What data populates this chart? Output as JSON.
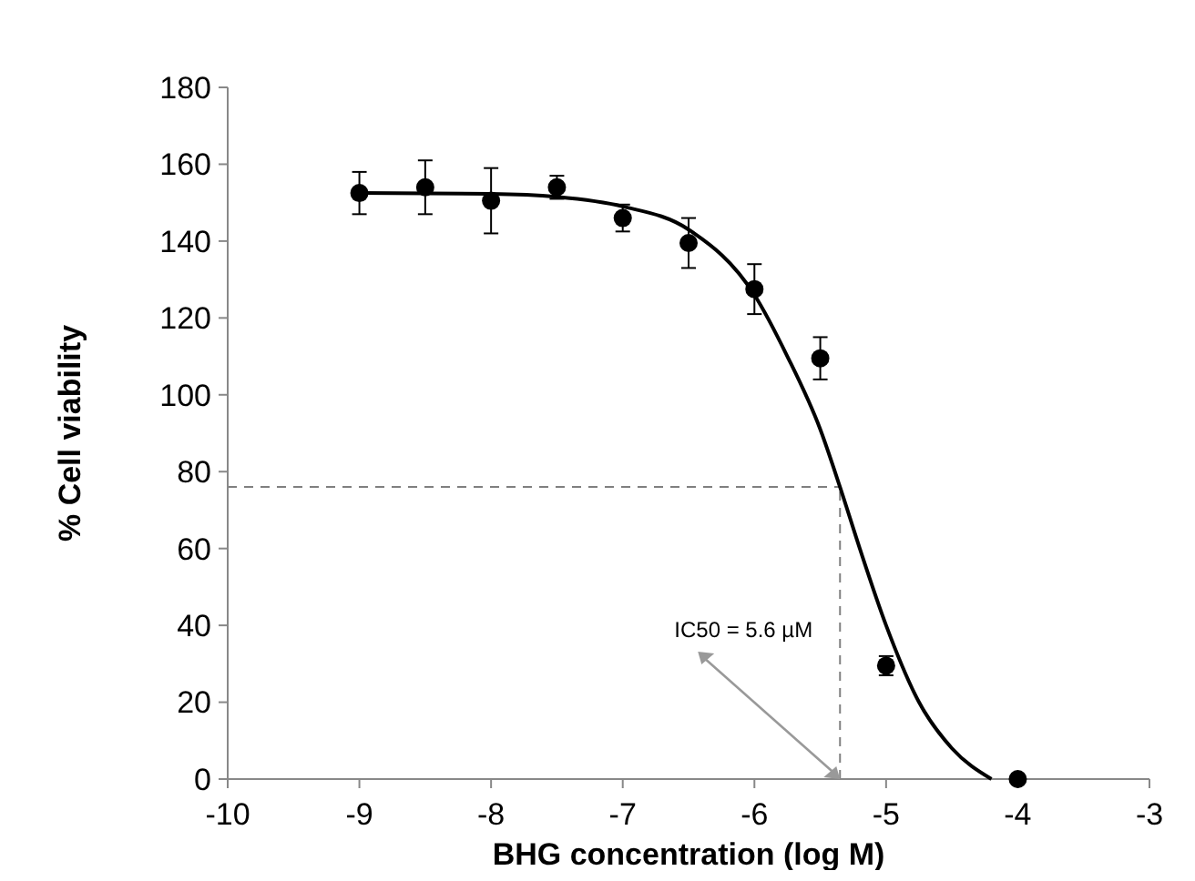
{
  "chart_data": {
    "type": "scatter",
    "xlabel": "BHG concentration (log M)",
    "ylabel": "% Cell viability",
    "xlim": [
      -10,
      -3
    ],
    "xticks": [
      -10,
      -9,
      -8,
      -7,
      -6,
      -5,
      -4,
      -3
    ],
    "ylim": [
      0,
      180
    ],
    "yticks": [
      0,
      20,
      40,
      60,
      80,
      100,
      120,
      140,
      160,
      180
    ],
    "grid": false,
    "marker": "circle",
    "series": [
      {
        "color": "#000000",
        "x": [
          -9,
          -8.5,
          -8,
          -7.5,
          -7,
          -6.5,
          -6,
          -5.5,
          -5,
          -4
        ],
        "values": [
          152.5,
          154,
          150.5,
          154,
          146,
          139.5,
          127.5,
          109.5,
          29.5,
          0
        ],
        "errors": [
          5.5,
          7,
          8.5,
          3,
          3.5,
          6.5,
          6.5,
          5.5,
          2.5,
          null
        ]
      },
      {
        "type": "line",
        "color": "#000000",
        "marker": "none",
        "line_style": "solid",
        "x": [
          -9,
          -8,
          -7.5,
          -7,
          -6.5,
          -6,
          -5.75,
          -5.5,
          -5.35,
          -5.2,
          -5,
          -4.75,
          -4.5,
          -4.2
        ],
        "values": [
          152.5,
          152.3,
          151.5,
          149,
          143,
          126,
          110,
          91,
          76,
          60,
          40,
          20,
          8,
          0
        ]
      }
    ],
    "ref_lines": [
      {
        "axis": "y",
        "value": 76,
        "color": "#808080",
        "line_style": "dashed"
      },
      {
        "axis": "x",
        "value": -5.35,
        "color": "#808080",
        "line_style": "dashed"
      }
    ],
    "annotations": [
      {
        "text": "IC50 = 5.6 µM",
        "x": -5.35,
        "y": 0
      }
    ]
  }
}
